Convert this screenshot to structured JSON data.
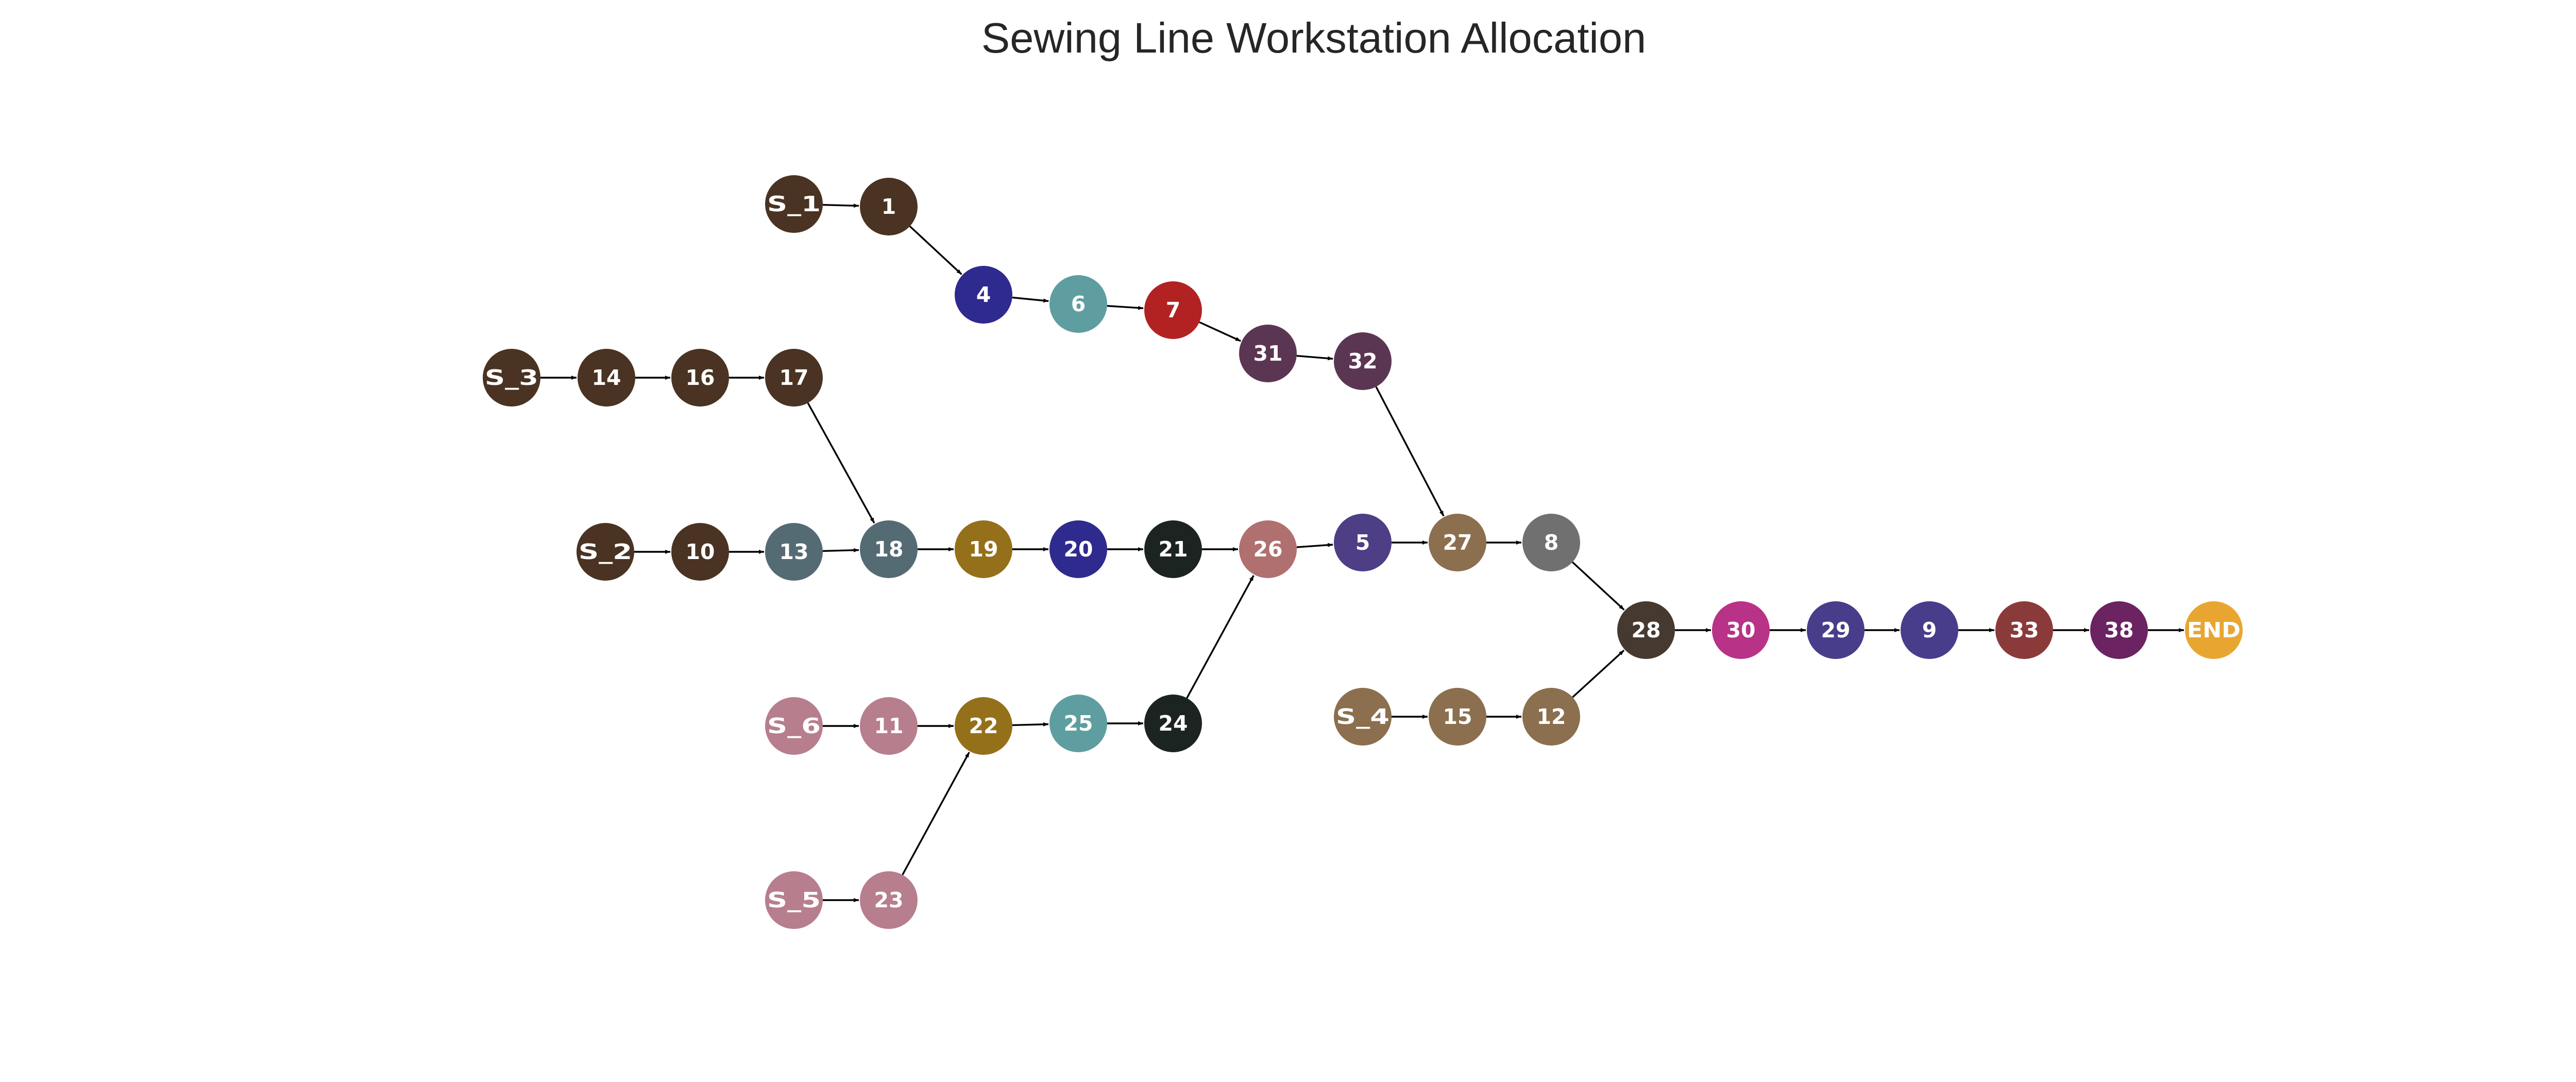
{
  "title": "Sewing Line Workstation Allocation",
  "nodes": [
    {
      "id": "S_1",
      "label": "S_1",
      "color": "#4a3322"
    },
    {
      "id": "1",
      "label": "1",
      "color": "#4a3322"
    },
    {
      "id": "4",
      "label": "4",
      "color": "#2e2a8e"
    },
    {
      "id": "6",
      "label": "6",
      "color": "#5f9ea0"
    },
    {
      "id": "7",
      "label": "7",
      "color": "#b22222"
    },
    {
      "id": "31",
      "label": "31",
      "color": "#5b3652"
    },
    {
      "id": "32",
      "label": "32",
      "color": "#5b3652"
    },
    {
      "id": "S_3",
      "label": "S_3",
      "color": "#4a3322"
    },
    {
      "id": "14",
      "label": "14",
      "color": "#4a3322"
    },
    {
      "id": "16",
      "label": "16",
      "color": "#4a3322"
    },
    {
      "id": "17",
      "label": "17",
      "color": "#4a3322"
    },
    {
      "id": "S_2",
      "label": "S_2",
      "color": "#4a3322"
    },
    {
      "id": "10",
      "label": "10",
      "color": "#4a3322"
    },
    {
      "id": "13",
      "label": "13",
      "color": "#556b74"
    },
    {
      "id": "18",
      "label": "18",
      "color": "#556b74"
    },
    {
      "id": "19",
      "label": "19",
      "color": "#94701a"
    },
    {
      "id": "20",
      "label": "20",
      "color": "#2e2a8e"
    },
    {
      "id": "21",
      "label": "21",
      "color": "#1b2421"
    },
    {
      "id": "26",
      "label": "26",
      "color": "#b07070"
    },
    {
      "id": "5",
      "label": "5",
      "color": "#4e3e86"
    },
    {
      "id": "27",
      "label": "27",
      "color": "#8b6f4e"
    },
    {
      "id": "8",
      "label": "8",
      "color": "#707070"
    },
    {
      "id": "28",
      "label": "28",
      "color": "#463a30"
    },
    {
      "id": "30",
      "label": "30",
      "color": "#b83288"
    },
    {
      "id": "29",
      "label": "29",
      "color": "#483d8b"
    },
    {
      "id": "9",
      "label": "9",
      "color": "#483d8b"
    },
    {
      "id": "33",
      "label": "33",
      "color": "#8b3a3a"
    },
    {
      "id": "38",
      "label": "38",
      "color": "#6b2361"
    },
    {
      "id": "END",
      "label": "END",
      "color": "#e8a631"
    },
    {
      "id": "S_4",
      "label": "S_4",
      "color": "#8b6f4e"
    },
    {
      "id": "15",
      "label": "15",
      "color": "#8b6f4e"
    },
    {
      "id": "12",
      "label": "12",
      "color": "#8b6f4e"
    },
    {
      "id": "S_6",
      "label": "S_6",
      "color": "#b77e8e"
    },
    {
      "id": "11",
      "label": "11",
      "color": "#b77e8e"
    },
    {
      "id": "22",
      "label": "22",
      "color": "#94701a"
    },
    {
      "id": "25",
      "label": "25",
      "color": "#5f9ea0"
    },
    {
      "id": "24",
      "label": "24",
      "color": "#1b2421"
    },
    {
      "id": "S_5",
      "label": "S_5",
      "color": "#b77e8e"
    },
    {
      "id": "23",
      "label": "23",
      "color": "#b77e8e"
    }
  ],
  "edges": [
    [
      "S_1",
      "1"
    ],
    [
      "1",
      "4"
    ],
    [
      "4",
      "6"
    ],
    [
      "6",
      "7"
    ],
    [
      "7",
      "31"
    ],
    [
      "31",
      "32"
    ],
    [
      "32",
      "27"
    ],
    [
      "S_3",
      "14"
    ],
    [
      "14",
      "16"
    ],
    [
      "16",
      "17"
    ],
    [
      "17",
      "18"
    ],
    [
      "S_2",
      "10"
    ],
    [
      "10",
      "13"
    ],
    [
      "13",
      "18"
    ],
    [
      "18",
      "19"
    ],
    [
      "19",
      "20"
    ],
    [
      "20",
      "21"
    ],
    [
      "21",
      "26"
    ],
    [
      "26",
      "5"
    ],
    [
      "5",
      "27"
    ],
    [
      "27",
      "8"
    ],
    [
      "8",
      "28"
    ],
    [
      "S_4",
      "15"
    ],
    [
      "15",
      "12"
    ],
    [
      "12",
      "28"
    ],
    [
      "28",
      "30"
    ],
    [
      "30",
      "29"
    ],
    [
      "29",
      "9"
    ],
    [
      "9",
      "33"
    ],
    [
      "33",
      "38"
    ],
    [
      "38",
      "END"
    ],
    [
      "S_6",
      "11"
    ],
    [
      "11",
      "22"
    ],
    [
      "22",
      "25"
    ],
    [
      "25",
      "24"
    ],
    [
      "24",
      "26"
    ],
    [
      "S_5",
      "23"
    ],
    [
      "23",
      "22"
    ]
  ]
}
